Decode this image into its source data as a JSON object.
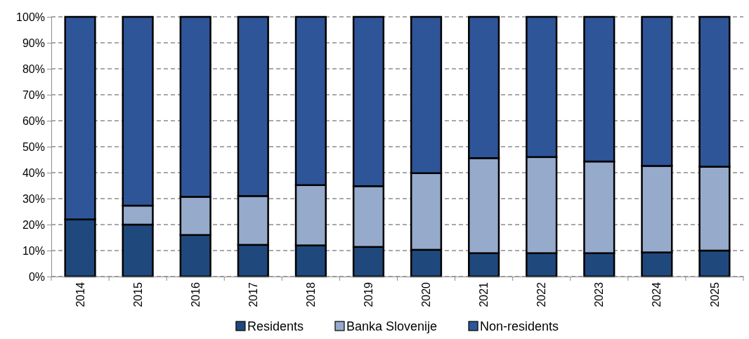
{
  "chart_data": {
    "type": "bar",
    "stacked": true,
    "categories": [
      "2014",
      "2015",
      "2016",
      "2017",
      "2018",
      "2019",
      "2020",
      "2021",
      "2022",
      "2023",
      "2024",
      "2025"
    ],
    "series": [
      {
        "name": "Residents",
        "color": "#1f497d",
        "values": [
          22,
          20,
          16,
          12.2,
          12,
          11.4,
          10.3,
          9,
          9,
          9,
          9.3,
          10
        ]
      },
      {
        "name": "Banka Slovenije",
        "color": "#96aacb",
        "values": [
          0,
          7.3,
          14.7,
          18.8,
          23.2,
          23.4,
          29.5,
          36.6,
          37,
          35.3,
          33.3,
          32.3
        ]
      },
      {
        "name": "Non-residents",
        "color": "#2e5597",
        "values": [
          78,
          72.7,
          69.3,
          69,
          64.8,
          65.2,
          60.2,
          54.4,
          54,
          55.7,
          57.4,
          57.7
        ]
      }
    ],
    "ylim": [
      0,
      100
    ],
    "yticks": [
      {
        "value": 0,
        "label": "0%"
      },
      {
        "value": 10,
        "label": "10%"
      },
      {
        "value": 20,
        "label": "20%"
      },
      {
        "value": 30,
        "label": "30%"
      },
      {
        "value": 40,
        "label": "40%"
      },
      {
        "value": 50,
        "label": "50%"
      },
      {
        "value": 60,
        "label": "60%"
      },
      {
        "value": 70,
        "label": "70%"
      },
      {
        "value": 80,
        "label": "80%"
      },
      {
        "value": 90,
        "label": "90%"
      },
      {
        "value": 100,
        "label": "100%"
      }
    ],
    "grid": "y",
    "legend": "bottom"
  }
}
